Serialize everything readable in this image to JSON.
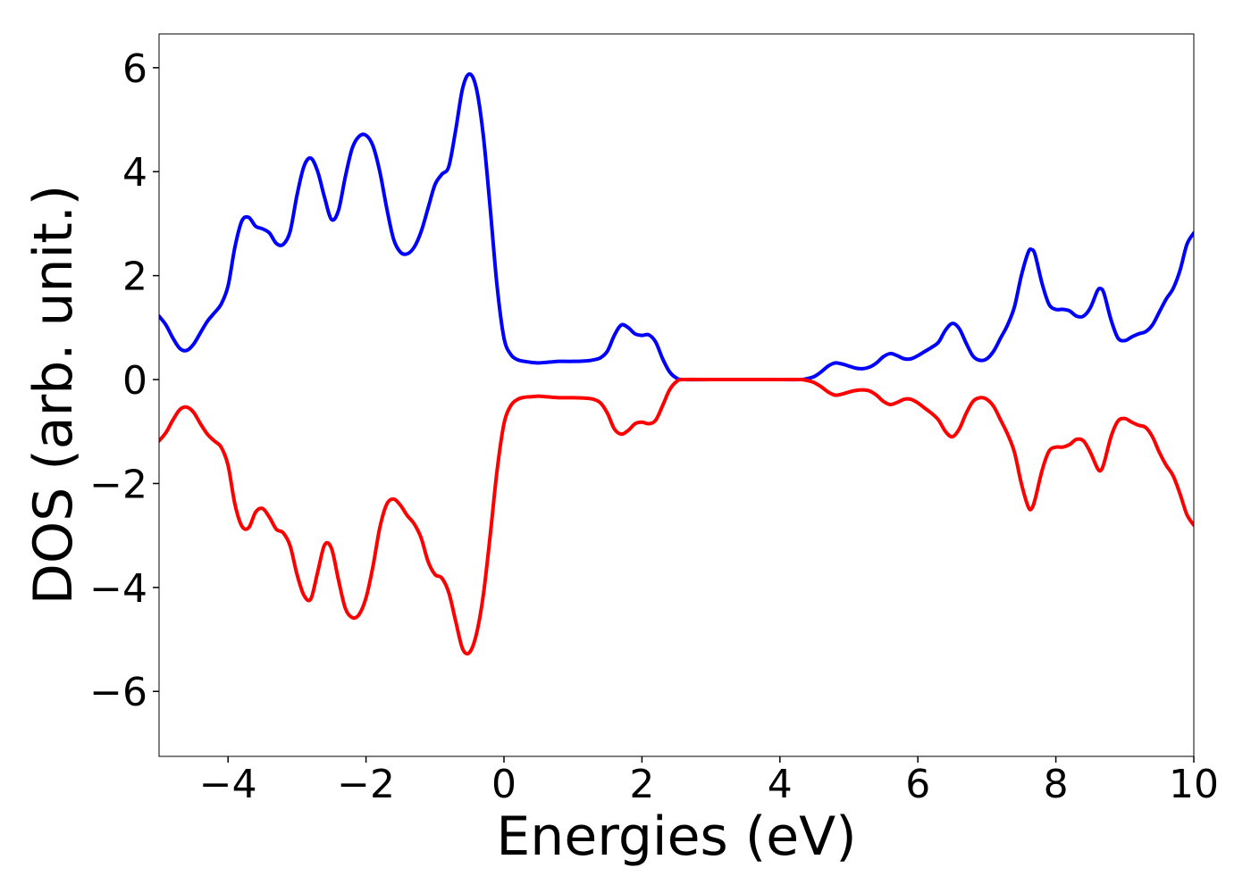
{
  "chart_data": {
    "type": "line",
    "title": "",
    "xlabel": "Energies (eV)",
    "ylabel": "DOS (arb. unit.)",
    "xlim": [
      -5,
      10
    ],
    "ylim": [
      -7.25,
      6.65
    ],
    "xticks": [
      -4,
      -2,
      0,
      2,
      4,
      6,
      8,
      10
    ],
    "yticks": [
      -6,
      -4,
      -2,
      0,
      2,
      4,
      6
    ],
    "xtick_labels": [
      "−4",
      "−2",
      "0",
      "2",
      "4",
      "6",
      "8",
      "10"
    ],
    "ytick_labels": [
      "−6",
      "−4",
      "−2",
      "0",
      "2",
      "4",
      "6"
    ],
    "grid": false,
    "legend": false,
    "series": [
      {
        "color": "#0000ff",
        "points": [
          [
            -5.0,
            1.22
          ],
          [
            -4.9,
            1.05
          ],
          [
            -4.8,
            0.8
          ],
          [
            -4.7,
            0.6
          ],
          [
            -4.6,
            0.56
          ],
          [
            -4.5,
            0.68
          ],
          [
            -4.4,
            0.9
          ],
          [
            -4.3,
            1.12
          ],
          [
            -4.2,
            1.28
          ],
          [
            -4.1,
            1.45
          ],
          [
            -4.0,
            1.8
          ],
          [
            -3.9,
            2.55
          ],
          [
            -3.8,
            3.05
          ],
          [
            -3.7,
            3.12
          ],
          [
            -3.6,
            2.95
          ],
          [
            -3.5,
            2.9
          ],
          [
            -3.4,
            2.82
          ],
          [
            -3.3,
            2.62
          ],
          [
            -3.2,
            2.6
          ],
          [
            -3.1,
            2.85
          ],
          [
            -3.0,
            3.55
          ],
          [
            -2.9,
            4.1
          ],
          [
            -2.8,
            4.26
          ],
          [
            -2.7,
            4.0
          ],
          [
            -2.6,
            3.5
          ],
          [
            -2.5,
            3.08
          ],
          [
            -2.4,
            3.25
          ],
          [
            -2.3,
            3.9
          ],
          [
            -2.2,
            4.45
          ],
          [
            -2.1,
            4.68
          ],
          [
            -2.0,
            4.7
          ],
          [
            -1.9,
            4.5
          ],
          [
            -1.8,
            4.0
          ],
          [
            -1.7,
            3.3
          ],
          [
            -1.6,
            2.7
          ],
          [
            -1.5,
            2.45
          ],
          [
            -1.4,
            2.42
          ],
          [
            -1.3,
            2.55
          ],
          [
            -1.2,
            2.85
          ],
          [
            -1.1,
            3.3
          ],
          [
            -1.0,
            3.75
          ],
          [
            -0.9,
            3.95
          ],
          [
            -0.8,
            4.1
          ],
          [
            -0.7,
            4.8
          ],
          [
            -0.6,
            5.6
          ],
          [
            -0.5,
            5.88
          ],
          [
            -0.4,
            5.6
          ],
          [
            -0.3,
            4.7
          ],
          [
            -0.2,
            3.3
          ],
          [
            -0.1,
            1.8
          ],
          [
            0.0,
            0.8
          ],
          [
            0.1,
            0.48
          ],
          [
            0.2,
            0.38
          ],
          [
            0.3,
            0.35
          ],
          [
            0.4,
            0.33
          ],
          [
            0.5,
            0.32
          ],
          [
            0.6,
            0.33
          ],
          [
            0.7,
            0.34
          ],
          [
            0.8,
            0.35
          ],
          [
            1.0,
            0.35
          ],
          [
            1.2,
            0.36
          ],
          [
            1.3,
            0.38
          ],
          [
            1.4,
            0.42
          ],
          [
            1.5,
            0.55
          ],
          [
            1.6,
            0.85
          ],
          [
            1.7,
            1.05
          ],
          [
            1.8,
            1.0
          ],
          [
            1.9,
            0.88
          ],
          [
            2.0,
            0.85
          ],
          [
            2.1,
            0.86
          ],
          [
            2.2,
            0.72
          ],
          [
            2.3,
            0.4
          ],
          [
            2.4,
            0.15
          ],
          [
            2.5,
            0.03
          ],
          [
            2.6,
            0.0
          ],
          [
            3.0,
            0.0
          ],
          [
            3.5,
            0.0
          ],
          [
            4.0,
            0.0
          ],
          [
            4.3,
            0.0
          ],
          [
            4.4,
            0.02
          ],
          [
            4.5,
            0.06
          ],
          [
            4.6,
            0.15
          ],
          [
            4.7,
            0.26
          ],
          [
            4.8,
            0.32
          ],
          [
            4.9,
            0.3
          ],
          [
            5.0,
            0.26
          ],
          [
            5.1,
            0.22
          ],
          [
            5.2,
            0.21
          ],
          [
            5.3,
            0.24
          ],
          [
            5.4,
            0.32
          ],
          [
            5.5,
            0.44
          ],
          [
            5.6,
            0.5
          ],
          [
            5.7,
            0.46
          ],
          [
            5.8,
            0.4
          ],
          [
            5.9,
            0.4
          ],
          [
            6.0,
            0.46
          ],
          [
            6.1,
            0.54
          ],
          [
            6.2,
            0.62
          ],
          [
            6.3,
            0.72
          ],
          [
            6.4,
            0.95
          ],
          [
            6.5,
            1.08
          ],
          [
            6.6,
            0.98
          ],
          [
            6.7,
            0.7
          ],
          [
            6.8,
            0.45
          ],
          [
            6.9,
            0.37
          ],
          [
            7.0,
            0.4
          ],
          [
            7.1,
            0.55
          ],
          [
            7.2,
            0.8
          ],
          [
            7.3,
            1.05
          ],
          [
            7.4,
            1.4
          ],
          [
            7.5,
            2.0
          ],
          [
            7.6,
            2.45
          ],
          [
            7.65,
            2.5
          ],
          [
            7.7,
            2.4
          ],
          [
            7.8,
            1.85
          ],
          [
            7.9,
            1.45
          ],
          [
            8.0,
            1.35
          ],
          [
            8.1,
            1.35
          ],
          [
            8.2,
            1.32
          ],
          [
            8.3,
            1.22
          ],
          [
            8.4,
            1.22
          ],
          [
            8.5,
            1.38
          ],
          [
            8.6,
            1.7
          ],
          [
            8.65,
            1.75
          ],
          [
            8.7,
            1.65
          ],
          [
            8.8,
            1.15
          ],
          [
            8.9,
            0.8
          ],
          [
            9.0,
            0.75
          ],
          [
            9.1,
            0.82
          ],
          [
            9.2,
            0.88
          ],
          [
            9.3,
            0.92
          ],
          [
            9.4,
            1.05
          ],
          [
            9.5,
            1.3
          ],
          [
            9.6,
            1.55
          ],
          [
            9.7,
            1.75
          ],
          [
            9.8,
            2.1
          ],
          [
            9.9,
            2.6
          ],
          [
            10.0,
            2.82
          ]
        ]
      },
      {
        "color": "#ff0000",
        "points": [
          [
            -5.0,
            -1.18
          ],
          [
            -4.9,
            -1.02
          ],
          [
            -4.8,
            -0.78
          ],
          [
            -4.7,
            -0.58
          ],
          [
            -4.6,
            -0.53
          ],
          [
            -4.5,
            -0.63
          ],
          [
            -4.4,
            -0.85
          ],
          [
            -4.3,
            -1.05
          ],
          [
            -4.2,
            -1.18
          ],
          [
            -4.1,
            -1.3
          ],
          [
            -4.0,
            -1.65
          ],
          [
            -3.9,
            -2.4
          ],
          [
            -3.8,
            -2.82
          ],
          [
            -3.7,
            -2.85
          ],
          [
            -3.6,
            -2.55
          ],
          [
            -3.5,
            -2.48
          ],
          [
            -3.4,
            -2.65
          ],
          [
            -3.3,
            -2.88
          ],
          [
            -3.2,
            -2.95
          ],
          [
            -3.1,
            -3.2
          ],
          [
            -3.0,
            -3.75
          ],
          [
            -2.9,
            -4.15
          ],
          [
            -2.8,
            -4.22
          ],
          [
            -2.7,
            -3.7
          ],
          [
            -2.6,
            -3.18
          ],
          [
            -2.5,
            -3.25
          ],
          [
            -2.4,
            -3.85
          ],
          [
            -2.3,
            -4.4
          ],
          [
            -2.2,
            -4.58
          ],
          [
            -2.1,
            -4.52
          ],
          [
            -2.0,
            -4.2
          ],
          [
            -1.9,
            -3.6
          ],
          [
            -1.8,
            -2.85
          ],
          [
            -1.7,
            -2.4
          ],
          [
            -1.6,
            -2.3
          ],
          [
            -1.5,
            -2.42
          ],
          [
            -1.4,
            -2.62
          ],
          [
            -1.3,
            -2.78
          ],
          [
            -1.2,
            -3.05
          ],
          [
            -1.1,
            -3.5
          ],
          [
            -1.0,
            -3.75
          ],
          [
            -0.9,
            -3.82
          ],
          [
            -0.8,
            -4.1
          ],
          [
            -0.7,
            -4.65
          ],
          [
            -0.6,
            -5.18
          ],
          [
            -0.5,
            -5.25
          ],
          [
            -0.4,
            -4.9
          ],
          [
            -0.3,
            -4.15
          ],
          [
            -0.2,
            -3.0
          ],
          [
            -0.1,
            -1.75
          ],
          [
            0.0,
            -0.85
          ],
          [
            0.1,
            -0.5
          ],
          [
            0.2,
            -0.38
          ],
          [
            0.3,
            -0.34
          ],
          [
            0.4,
            -0.33
          ],
          [
            0.5,
            -0.32
          ],
          [
            0.6,
            -0.33
          ],
          [
            0.7,
            -0.34
          ],
          [
            0.8,
            -0.35
          ],
          [
            1.0,
            -0.35
          ],
          [
            1.2,
            -0.36
          ],
          [
            1.3,
            -0.38
          ],
          [
            1.4,
            -0.45
          ],
          [
            1.5,
            -0.65
          ],
          [
            1.6,
            -0.95
          ],
          [
            1.7,
            -1.05
          ],
          [
            1.8,
            -0.98
          ],
          [
            1.9,
            -0.85
          ],
          [
            2.0,
            -0.82
          ],
          [
            2.1,
            -0.85
          ],
          [
            2.2,
            -0.78
          ],
          [
            2.3,
            -0.5
          ],
          [
            2.4,
            -0.2
          ],
          [
            2.5,
            -0.04
          ],
          [
            2.6,
            0.0
          ],
          [
            3.0,
            0.0
          ],
          [
            3.5,
            0.0
          ],
          [
            4.0,
            0.0
          ],
          [
            4.3,
            0.0
          ],
          [
            4.4,
            -0.02
          ],
          [
            4.5,
            -0.06
          ],
          [
            4.6,
            -0.14
          ],
          [
            4.7,
            -0.24
          ],
          [
            4.8,
            -0.3
          ],
          [
            4.9,
            -0.28
          ],
          [
            5.0,
            -0.24
          ],
          [
            5.1,
            -0.21
          ],
          [
            5.2,
            -0.2
          ],
          [
            5.3,
            -0.22
          ],
          [
            5.4,
            -0.3
          ],
          [
            5.5,
            -0.42
          ],
          [
            5.6,
            -0.48
          ],
          [
            5.7,
            -0.44
          ],
          [
            5.8,
            -0.38
          ],
          [
            5.9,
            -0.38
          ],
          [
            6.0,
            -0.45
          ],
          [
            6.1,
            -0.55
          ],
          [
            6.2,
            -0.65
          ],
          [
            6.3,
            -0.78
          ],
          [
            6.4,
            -1.0
          ],
          [
            6.5,
            -1.1
          ],
          [
            6.6,
            -0.95
          ],
          [
            6.7,
            -0.65
          ],
          [
            6.8,
            -0.42
          ],
          [
            6.9,
            -0.35
          ],
          [
            7.0,
            -0.38
          ],
          [
            7.1,
            -0.52
          ],
          [
            7.2,
            -0.78
          ],
          [
            7.3,
            -1.05
          ],
          [
            7.4,
            -1.4
          ],
          [
            7.5,
            -2.0
          ],
          [
            7.6,
            -2.45
          ],
          [
            7.65,
            -2.48
          ],
          [
            7.7,
            -2.3
          ],
          [
            7.8,
            -1.75
          ],
          [
            7.9,
            -1.38
          ],
          [
            8.0,
            -1.3
          ],
          [
            8.1,
            -1.3
          ],
          [
            8.2,
            -1.25
          ],
          [
            8.3,
            -1.15
          ],
          [
            8.4,
            -1.18
          ],
          [
            8.5,
            -1.4
          ],
          [
            8.6,
            -1.7
          ],
          [
            8.65,
            -1.75
          ],
          [
            8.7,
            -1.6
          ],
          [
            8.8,
            -1.1
          ],
          [
            8.9,
            -0.8
          ],
          [
            9.0,
            -0.75
          ],
          [
            9.1,
            -0.82
          ],
          [
            9.2,
            -0.88
          ],
          [
            9.3,
            -0.92
          ],
          [
            9.4,
            -1.1
          ],
          [
            9.5,
            -1.4
          ],
          [
            9.6,
            -1.65
          ],
          [
            9.7,
            -1.85
          ],
          [
            9.8,
            -2.2
          ],
          [
            9.9,
            -2.6
          ],
          [
            10.0,
            -2.8
          ]
        ]
      }
    ]
  }
}
